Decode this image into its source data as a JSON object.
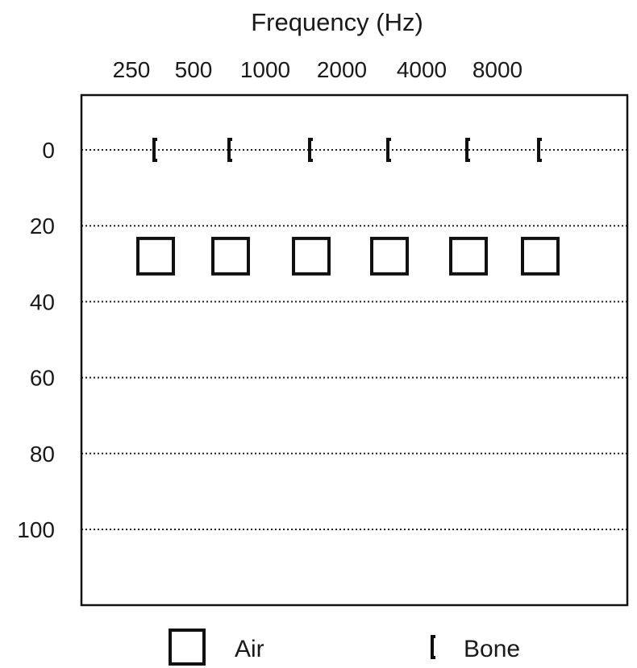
{
  "chart_data": {
    "type": "scatter",
    "title": "Frequency  (Hz)",
    "x_categories": [
      "250",
      "500",
      "1000",
      "2000",
      "4000",
      "8000"
    ],
    "y_ticks": [
      0,
      20,
      40,
      60,
      80,
      100
    ],
    "ylim": [
      -14,
      120
    ],
    "y_inverted": true,
    "grid": "horizontal-dotted",
    "series": [
      {
        "name": "Air",
        "marker": "square",
        "values": [
          28,
          28,
          28,
          28,
          28,
          28
        ]
      },
      {
        "name": "Bone",
        "marker": "bracket",
        "values": [
          0,
          0,
          0,
          0,
          0,
          0
        ]
      }
    ],
    "legend": {
      "position": "bottom"
    }
  }
}
